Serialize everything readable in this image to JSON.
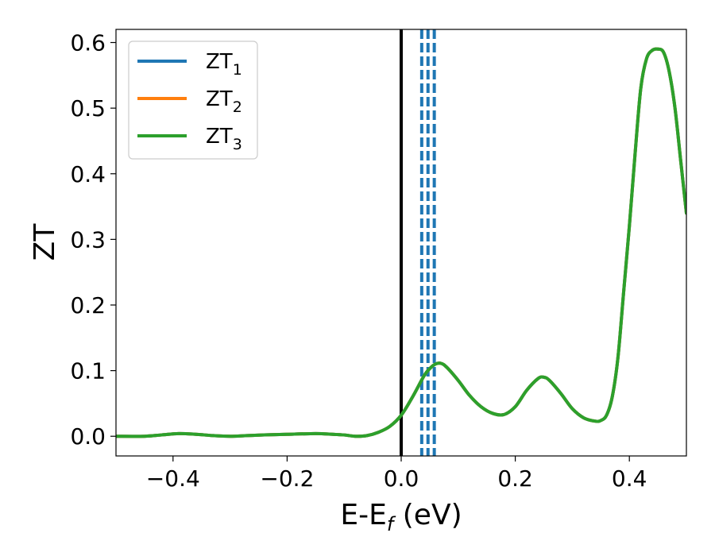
{
  "chart_data": {
    "type": "line",
    "title": "",
    "xlabel": "E-E",
    "xlabel_sub": "f",
    "xlabel_unit": " (eV)",
    "ylabel": "ZT",
    "xlim": [
      -0.5,
      0.5
    ],
    "ylim": [
      -0.03,
      0.62
    ],
    "x_ticks": [
      -0.4,
      -0.2,
      0.0,
      0.2,
      0.4
    ],
    "x_tick_labels": [
      "−0.4",
      "−0.2",
      "0.0",
      "0.2",
      "0.4"
    ],
    "y_ticks": [
      0.0,
      0.1,
      0.2,
      0.3,
      0.4,
      0.5,
      0.6
    ],
    "y_tick_labels": [
      "0.0",
      "0.1",
      "0.2",
      "0.3",
      "0.4",
      "0.5",
      "0.6"
    ],
    "grid": false,
    "legend_position": "top-left",
    "vertical_lines": [
      {
        "x": 0.0,
        "style": "solid",
        "color": "#000000"
      },
      {
        "x": 0.036,
        "style": "dashed",
        "color": "#1f77b4"
      },
      {
        "x": 0.047,
        "style": "dashed",
        "color": "#1f77b4"
      },
      {
        "x": 0.058,
        "style": "dashed",
        "color": "#1f77b4"
      }
    ],
    "x": [
      -0.5,
      -0.45,
      -0.42,
      -0.39,
      -0.36,
      -0.33,
      -0.3,
      -0.27,
      -0.24,
      -0.2,
      -0.15,
      -0.12,
      -0.1,
      -0.08,
      -0.06,
      -0.04,
      -0.02,
      0.0,
      0.02,
      0.04,
      0.05,
      0.06,
      0.07,
      0.08,
      0.1,
      0.12,
      0.14,
      0.16,
      0.18,
      0.2,
      0.22,
      0.24,
      0.25,
      0.26,
      0.28,
      0.3,
      0.32,
      0.34,
      0.35,
      0.36,
      0.37,
      0.38,
      0.39,
      0.4,
      0.41,
      0.42,
      0.43,
      0.44,
      0.45,
      0.46,
      0.47,
      0.48,
      0.49,
      0.5
    ],
    "series": [
      {
        "name_main": "ZT",
        "name_sub": "1",
        "color": "#1f77b4",
        "values": [
          0.0,
          0.0,
          0.002,
          0.004,
          0.003,
          0.001,
          0.0,
          0.001,
          0.002,
          0.003,
          0.004,
          0.003,
          0.002,
          0.0,
          0.001,
          0.006,
          0.015,
          0.032,
          0.06,
          0.092,
          0.103,
          0.11,
          0.111,
          0.105,
          0.085,
          0.062,
          0.045,
          0.035,
          0.033,
          0.045,
          0.07,
          0.088,
          0.09,
          0.085,
          0.065,
          0.042,
          0.028,
          0.023,
          0.024,
          0.032,
          0.06,
          0.12,
          0.22,
          0.32,
          0.43,
          0.53,
          0.575,
          0.588,
          0.59,
          0.585,
          0.555,
          0.5,
          0.42,
          0.34
        ]
      },
      {
        "name_main": "ZT",
        "name_sub": "2",
        "color": "#ff7f0e",
        "values": [
          0.0,
          0.0,
          0.002,
          0.004,
          0.003,
          0.001,
          0.0,
          0.001,
          0.002,
          0.003,
          0.004,
          0.003,
          0.002,
          0.0,
          0.001,
          0.006,
          0.015,
          0.032,
          0.06,
          0.092,
          0.103,
          0.11,
          0.111,
          0.105,
          0.085,
          0.062,
          0.045,
          0.035,
          0.033,
          0.045,
          0.07,
          0.088,
          0.09,
          0.085,
          0.065,
          0.042,
          0.028,
          0.023,
          0.024,
          0.032,
          0.06,
          0.12,
          0.22,
          0.32,
          0.43,
          0.53,
          0.575,
          0.588,
          0.59,
          0.585,
          0.555,
          0.5,
          0.42,
          0.34
        ]
      },
      {
        "name_main": "ZT",
        "name_sub": "3",
        "color": "#2ca02c",
        "values": [
          0.0,
          0.0,
          0.002,
          0.004,
          0.003,
          0.001,
          0.0,
          0.001,
          0.002,
          0.003,
          0.004,
          0.003,
          0.002,
          0.0,
          0.001,
          0.006,
          0.015,
          0.032,
          0.06,
          0.092,
          0.103,
          0.11,
          0.111,
          0.105,
          0.085,
          0.062,
          0.045,
          0.035,
          0.033,
          0.045,
          0.07,
          0.088,
          0.09,
          0.085,
          0.065,
          0.042,
          0.028,
          0.023,
          0.024,
          0.032,
          0.06,
          0.12,
          0.22,
          0.32,
          0.43,
          0.53,
          0.575,
          0.588,
          0.59,
          0.585,
          0.555,
          0.5,
          0.42,
          0.34
        ]
      }
    ]
  }
}
